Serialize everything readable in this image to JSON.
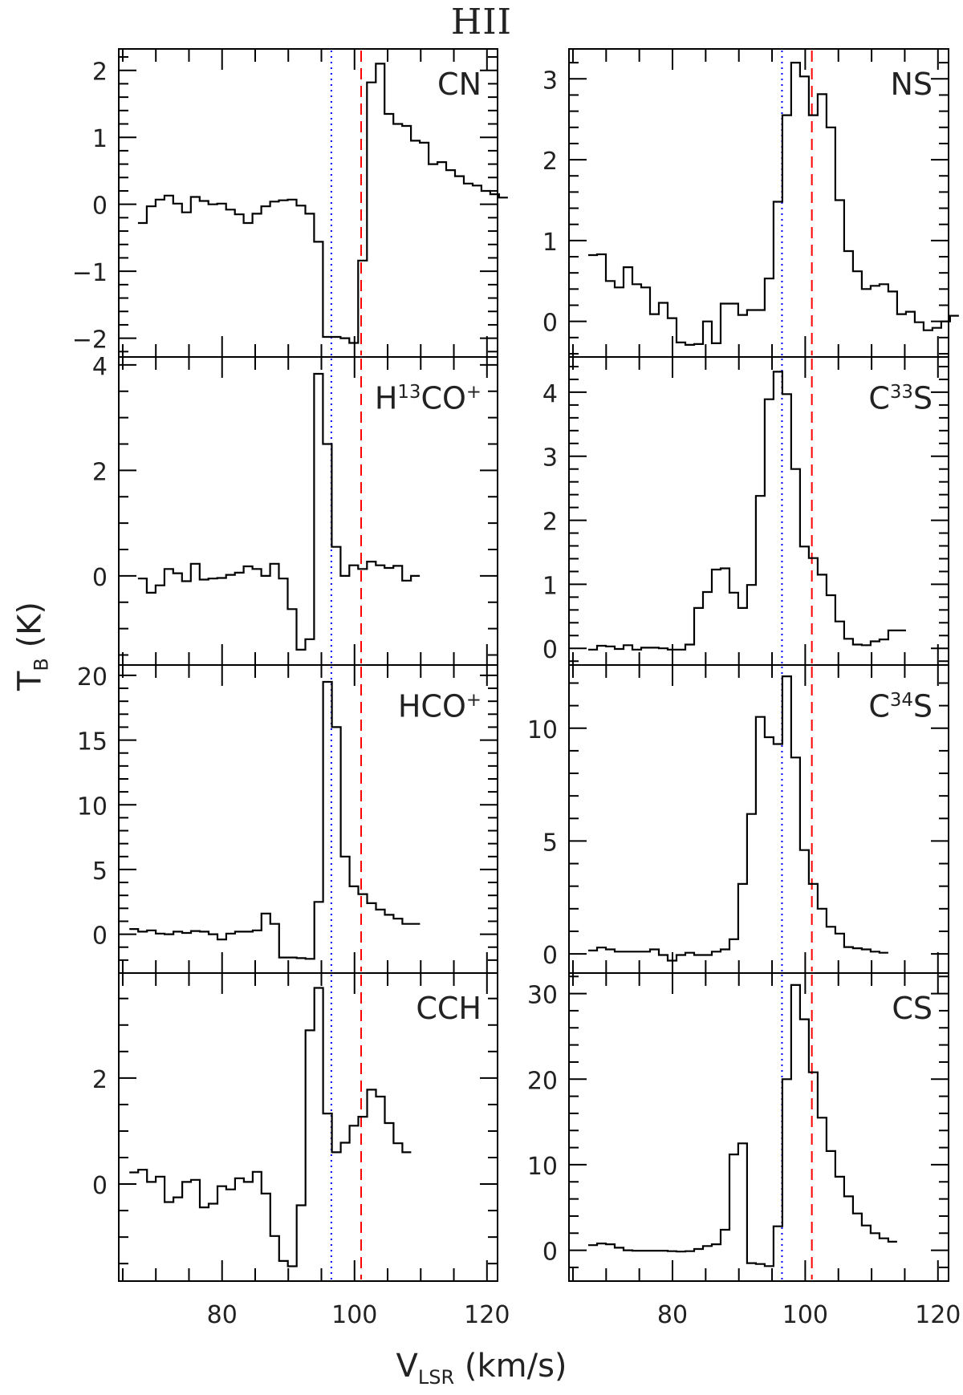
{
  "title": "HII",
  "xlabel_main": "V",
  "xlabel_sub": "LSR",
  "xlabel_unit": "(km/s)",
  "ylabel_main": "T",
  "ylabel_sub": "B",
  "ylabel_unit": "(K)",
  "colors": {
    "line": "#000000",
    "blue_marker": "#0000ff",
    "red_marker": "#ff0000"
  },
  "chart_data": [
    {
      "type": "line",
      "style": "step-histogram",
      "label": "CN",
      "label_html": "CN",
      "column": 0,
      "row": 0,
      "xlim": [
        64.4,
        121.6
      ],
      "ylim": [
        -2.28,
        2.32
      ],
      "yticks": [
        -2,
        -1,
        0,
        1,
        2
      ],
      "yminor": 0.2,
      "x_start": 67.3,
      "dx": 1.33,
      "values": [
        -0.28,
        -0.03,
        0.07,
        0.13,
        0.01,
        -0.12,
        0.11,
        0.05,
        0.0,
        0.01,
        -0.08,
        -0.15,
        -0.28,
        -0.14,
        -0.03,
        0.04,
        0.06,
        0.07,
        -0.02,
        -0.14,
        -0.56,
        -1.98,
        -1.98,
        -2.0,
        -2.07,
        -0.84,
        1.82,
        2.1,
        1.35,
        1.2,
        1.17,
        0.95,
        0.92,
        0.6,
        0.63,
        0.51,
        0.42,
        0.31,
        0.28,
        0.2,
        0.15,
        0.1
      ]
    },
    {
      "type": "line",
      "style": "step-histogram",
      "label": "NS",
      "label_html": "NS",
      "column": 1,
      "row": 0,
      "xlim": [
        64.4,
        121.6
      ],
      "ylim": [
        -0.44,
        3.37
      ],
      "yticks": [
        0,
        1,
        2,
        3
      ],
      "yminor": 0.2,
      "x_start": 67.3,
      "dx": 1.33,
      "values": [
        0.82,
        0.83,
        0.5,
        0.42,
        0.67,
        0.46,
        0.42,
        0.09,
        0.23,
        0.04,
        -0.26,
        -0.29,
        -0.28,
        0.0,
        -0.27,
        0.22,
        0.22,
        0.08,
        0.14,
        0.14,
        0.53,
        1.48,
        2.55,
        3.2,
        3.03,
        2.55,
        2.81,
        2.4,
        1.5,
        0.87,
        0.62,
        0.4,
        0.44,
        0.46,
        0.37,
        0.09,
        0.12,
        -0.01,
        -0.11,
        -0.08,
        0.0,
        0.07
      ]
    },
    {
      "type": "line",
      "style": "step-histogram",
      "label": "H13CO+",
      "label_html": "H<sup>13</sup>CO<sup>+</sup>",
      "column": 0,
      "row": 1,
      "xlim": [
        64.4,
        121.6
      ],
      "ylim": [
        -1.69,
        4.15
      ],
      "yticks": [
        0,
        2,
        4
      ],
      "yminor": 0.5,
      "x_start": 67.3,
      "dx": 1.33,
      "values": [
        -0.05,
        -0.32,
        -0.18,
        0.13,
        0.05,
        -0.1,
        0.23,
        -0.07,
        -0.05,
        -0.04,
        0.02,
        0.06,
        0.18,
        0.13,
        0.0,
        0.23,
        -0.05,
        -0.63,
        -1.4,
        -1.2,
        3.83,
        2.5,
        0.55,
        0.0,
        0.2,
        0.13,
        0.27,
        0.2,
        0.15,
        0.19,
        -0.09,
        0.0
      ]
    },
    {
      "type": "line",
      "style": "step-histogram",
      "label": "C33S",
      "label_html": "C<sup>33</sup>S",
      "column": 1,
      "row": 1,
      "xlim": [
        64.4,
        121.6
      ],
      "ylim": [
        -0.26,
        4.55
      ],
      "yticks": [
        0,
        1,
        2,
        3,
        4
      ],
      "yminor": 0.2,
      "x_start": 67.3,
      "dx": 1.33,
      "values": [
        -0.02,
        0.04,
        0.03,
        -0.01,
        0.05,
        -0.02,
        0.01,
        0.01,
        0.0,
        -0.02,
        -0.02,
        0.06,
        0.63,
        0.88,
        1.23,
        1.25,
        0.87,
        0.63,
        0.99,
        2.38,
        3.89,
        4.32,
        3.97,
        2.8,
        1.59,
        1.41,
        1.15,
        0.83,
        0.42,
        0.15,
        0.06,
        0.05,
        0.11,
        0.14,
        0.28,
        0.28
      ]
    },
    {
      "type": "line",
      "style": "step-histogram",
      "label": "HCO+",
      "label_html": "HCO<sup>+</sup>",
      "column": 0,
      "row": 2,
      "xlim": [
        64.4,
        121.6
      ],
      "ylim": [
        -3.0,
        20.8
      ],
      "yticks": [
        0,
        5,
        10,
        15,
        20
      ],
      "yminor": 1,
      "x_start": 66.0,
      "dx": 1.33,
      "values": [
        0.4,
        0.2,
        0.3,
        0.05,
        0.0,
        0.2,
        0.1,
        0.25,
        0.2,
        0.0,
        -0.4,
        0.05,
        0.2,
        0.2,
        0.3,
        1.6,
        0.8,
        -1.8,
        -1.8,
        -1.85,
        -1.9,
        2.5,
        19.5,
        16.0,
        6.0,
        3.7,
        3.1,
        2.4,
        1.9,
        1.5,
        1.2,
        0.8,
        0.8
      ]
    },
    {
      "type": "line",
      "style": "step-histogram",
      "label": "C34S",
      "label_html": "C<sup>34</sup>S",
      "column": 1,
      "row": 2,
      "xlim": [
        64.4,
        121.6
      ],
      "ylim": [
        -0.85,
        12.8
      ],
      "yticks": [
        0,
        5,
        10
      ],
      "yminor": 1,
      "x_start": 67.3,
      "dx": 1.33,
      "values": [
        0.15,
        0.28,
        0.2,
        0.1,
        0.1,
        0.1,
        0.1,
        0.2,
        -0.05,
        -0.3,
        -0.05,
        0.05,
        -0.05,
        -0.05,
        0.1,
        0.2,
        0.65,
        3.1,
        6.2,
        10.5,
        9.6,
        9.3,
        12.3,
        8.7,
        4.6,
        3.1,
        2.0,
        1.2,
        0.9,
        0.3,
        0.25,
        0.2,
        0.1,
        0.05
      ]
    },
    {
      "type": "line",
      "style": "step-histogram",
      "label": "CCH",
      "label_html": "CCH",
      "column": 0,
      "row": 3,
      "xlim": [
        64.4,
        121.6
      ],
      "ylim": [
        -1.83,
        3.98
      ],
      "yticks": [
        0,
        2
      ],
      "yminor": 0.5,
      "x_start": 66.0,
      "dx": 1.33,
      "values": [
        0.22,
        0.27,
        0.04,
        0.14,
        -0.34,
        -0.25,
        0.04,
        0.08,
        -0.44,
        -0.37,
        -0.04,
        -0.1,
        0.11,
        0.04,
        0.23,
        -0.18,
        -0.98,
        -1.45,
        -1.55,
        -0.4,
        2.9,
        3.7,
        1.33,
        0.6,
        0.78,
        1.1,
        1.27,
        1.78,
        1.65,
        1.15,
        0.77,
        0.6
      ]
    },
    {
      "type": "line",
      "style": "step-histogram",
      "label": "CS",
      "label_html": "CS",
      "column": 1,
      "row": 3,
      "xlim": [
        64.4,
        121.6
      ],
      "ylim": [
        -3.6,
        32.4
      ],
      "yticks": [
        0,
        10,
        20,
        30
      ],
      "yminor": 2,
      "x_start": 67.3,
      "dx": 1.33,
      "values": [
        0.6,
        0.8,
        0.7,
        0.3,
        0.0,
        -0.05,
        -0.05,
        -0.05,
        -0.05,
        -0.1,
        -0.15,
        -0.1,
        0.15,
        0.5,
        0.7,
        2.4,
        11.2,
        12.5,
        -1.5,
        -1.6,
        -1.85,
        2.8,
        20.0,
        31.0,
        27.0,
        20.8,
        15.5,
        11.6,
        8.6,
        6.3,
        4.3,
        2.9,
        2.0,
        1.4,
        1.0
      ]
    }
  ],
  "shared_x": {
    "ticks": [
      80,
      100,
      120
    ],
    "minor": 5,
    "markers": [
      {
        "name": "blue-dotted-line",
        "x": 96.5,
        "style": "dotted",
        "color": "#0000ff"
      },
      {
        "name": "red-dashed-line",
        "x": 101.0,
        "style": "dashed",
        "color": "#ff0000"
      }
    ]
  }
}
